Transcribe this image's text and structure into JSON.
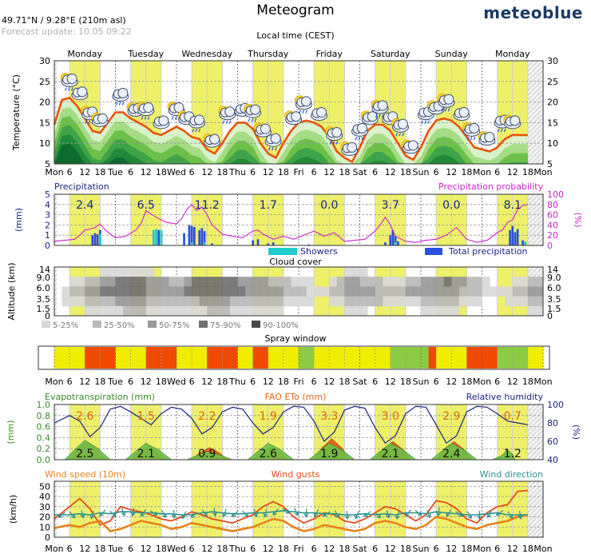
{
  "header": {
    "location": "49.71°N / 9.28°E (210m asl)",
    "forecast_update": "Forecast update: 10.05 09:22",
    "title": "Meteogram",
    "brand": "meteoblue",
    "local_time": "Local time (CEST)"
  },
  "colors": {
    "day_band": "#eef06a",
    "temp_line": "#e8540a",
    "precip_bar": "#2b50e0",
    "showers_bar": "#22cccc",
    "precip_prob": "#cc22cc",
    "humidity": "#1a237e",
    "evapo": "#6cc04a",
    "fao": "#e0651a",
    "wind_speed": "#e8821a",
    "wind_gusts": "#e84a1a",
    "wind_dir": "#2a9090"
  },
  "days": [
    "Monday",
    "Tuesday",
    "Wednesday",
    "Thursday",
    "Friday",
    "Saturday",
    "Sunday",
    "Monday"
  ],
  "axis_ticks": [
    "Mon",
    "6",
    "12",
    "18",
    "Tue",
    "6",
    "12",
    "18",
    "Wed",
    "6",
    "12",
    "18",
    "Thu",
    "6",
    "12",
    "18",
    "Fri",
    "6",
    "12",
    "18",
    "Sat",
    "6",
    "12",
    "18",
    "Sun",
    "6",
    "12",
    "18",
    "Mon",
    "6",
    "12",
    "18",
    "Mon"
  ],
  "chart_data": [
    {
      "type": "area",
      "id": "temperature",
      "ylabel": "Temperature (°C)",
      "ylim": [
        5,
        30
      ],
      "yticks": [
        5,
        10,
        15,
        20,
        25,
        30
      ],
      "x_unit": "hours since Monday 00:00",
      "series": [
        {
          "x": [
            0,
            3,
            6,
            9,
            12,
            15,
            18,
            21,
            24,
            27,
            30,
            33,
            36,
            39,
            42,
            45,
            48,
            51,
            54,
            57,
            60,
            63,
            66,
            69,
            72,
            75,
            78,
            81,
            84,
            87,
            90,
            93,
            96,
            99,
            102,
            105,
            108,
            111,
            114,
            117,
            120,
            123,
            126,
            129,
            132,
            135,
            138,
            141,
            144,
            147,
            150,
            153,
            156,
            159,
            162,
            165,
            168,
            171,
            174,
            177,
            180,
            183,
            186
          ],
          "values": [
            14.5,
            20.5,
            21,
            19,
            16,
            13,
            12.5,
            15,
            17.5,
            17.5,
            16,
            15,
            14,
            12.5,
            12,
            13,
            14,
            13,
            11.5,
            11,
            8.5,
            7.5,
            10,
            13,
            15,
            15,
            13.5,
            10,
            7.5,
            6.5,
            10,
            13,
            15,
            15.5,
            15,
            14,
            11.5,
            8,
            6.5,
            5.5,
            9,
            13,
            14.5,
            14.5,
            13,
            10,
            7,
            6,
            9,
            13,
            15.5,
            16,
            15.5,
            14,
            11.5,
            9,
            8.5,
            8,
            9,
            11,
            12,
            12,
            12
          ]
        }
      ]
    },
    {
      "type": "bar",
      "id": "precipitation",
      "title": "Precipitation",
      "ylabel": "(mm)",
      "ylim": [
        0,
        5
      ],
      "yticks": [
        0,
        1,
        2,
        3,
        4,
        5
      ],
      "y2label": "(%)",
      "y2lim": [
        0,
        100
      ],
      "y2ticks": [
        0,
        20,
        40,
        60,
        80,
        100
      ],
      "y2title": "Precipitation probability",
      "daily_totals": [
        "2.4",
        "6.5",
        "11.2",
        "1.7",
        "0.0",
        "3.7",
        "0.0",
        "8.1"
      ],
      "legend": [
        "Showers",
        "Total precipitation"
      ],
      "total_bars": [
        [
          15,
          1.0
        ],
        [
          16,
          1.2
        ],
        [
          17,
          1.1
        ],
        [
          18,
          1.5
        ],
        [
          41,
          1.5
        ],
        [
          42,
          1.4
        ],
        [
          51,
          1.2
        ],
        [
          53,
          2.0
        ],
        [
          54,
          1.9
        ],
        [
          55,
          1.8
        ],
        [
          57,
          1.5
        ],
        [
          58,
          1.7
        ],
        [
          59,
          1.4
        ],
        [
          62,
          0.2
        ],
        [
          78,
          0.5
        ],
        [
          80,
          0.6
        ],
        [
          84,
          0.2
        ],
        [
          86,
          0.3
        ],
        [
          100,
          0.1
        ],
        [
          130,
          0.3
        ],
        [
          132,
          1.0
        ],
        [
          133,
          1.5
        ],
        [
          134,
          0.9
        ],
        [
          135,
          0.4
        ],
        [
          179,
          1.5
        ],
        [
          180,
          1.9
        ],
        [
          181,
          1.3
        ],
        [
          182,
          1.6
        ],
        [
          184,
          0.5
        ],
        [
          185,
          0.3
        ]
      ],
      "shower_bars": [
        [
          18,
          1.1
        ],
        [
          39,
          1.5
        ],
        [
          40,
          1.6
        ],
        [
          42,
          1.5
        ],
        [
          54,
          0.3
        ],
        [
          59,
          0.3
        ],
        [
          134,
          0.3
        ],
        [
          185,
          0.4
        ]
      ],
      "probability": {
        "x": [
          0,
          4,
          8,
          10,
          12,
          14,
          16,
          18,
          20,
          24,
          28,
          32,
          34,
          36,
          40,
          44,
          48,
          50,
          52,
          54,
          56,
          58,
          60,
          62,
          66,
          70,
          74,
          78,
          80,
          82,
          86,
          90,
          94,
          98,
          102,
          106,
          110,
          114,
          118,
          122,
          126,
          128,
          130,
          132,
          134,
          138,
          142,
          146,
          150,
          154,
          158,
          162,
          166,
          170,
          174,
          176,
          178,
          180,
          182,
          184,
          186
        ],
        "values": [
          8,
          10,
          12,
          20,
          30,
          32,
          35,
          42,
          30,
          15,
          18,
          30,
          42,
          68,
          55,
          45,
          42,
          52,
          70,
          80,
          68,
          75,
          60,
          40,
          22,
          18,
          15,
          28,
          30,
          22,
          12,
          18,
          12,
          20,
          28,
          18,
          25,
          8,
          10,
          12,
          28,
          40,
          55,
          40,
          18,
          8,
          6,
          10,
          12,
          20,
          35,
          12,
          6,
          10,
          25,
          30,
          45,
          50,
          70,
          78,
          80
        ]
      }
    },
    {
      "type": "heatmap",
      "id": "cloud_cover",
      "title": "Cloud cover",
      "ylabel": "Altitude (km)",
      "yticks": [
        "0",
        "1.5",
        "3.5",
        "6.0",
        "9.0",
        "14"
      ],
      "legend": [
        "5-25%",
        "25-50%",
        "50-75%",
        "75-90%",
        "90-100%"
      ],
      "level_colors": [
        "#d8d8d8",
        "#b8b8b8",
        "#989898",
        "#707070",
        "#4a4a4a"
      ],
      "x_step_hours": 3,
      "rows_top_to_bottom": [
        "0000001111111000000000000000000000000011100000000000000000000000",
        "0011223344443332234444443333222111001233222111223334332210001122",
        "0122334444443333344444444333332221112233332222333333322211112233",
        "0111222233332222222333322222221111001122222111112222211100011122",
        "0000111112221111111122211111110000000011100000001111100000000011"
      ]
    },
    {
      "type": "table",
      "id": "spray_window",
      "title": "Spray window",
      "level_colors": [
        "#e6e633",
        "#f0ed00",
        "#f04a00",
        "#8ccc44"
      ],
      "cells": "1111222211112222111122221122111133111111111133333211112222333311"
    },
    {
      "type": "area",
      "id": "evapotranspiration",
      "title": "Evapotranspiration (mm)",
      "ylabel": "(mm)",
      "ylim": [
        0,
        1
      ],
      "yticks": [
        "0.0",
        "0.2",
        "0.4",
        "0.6",
        "0.8",
        "1.0"
      ],
      "fao_title": "FAO ETo (mm)",
      "y2label": "(%)",
      "y2title": "Relative humidity",
      "y2lim": [
        40,
        100
      ],
      "y2ticks": [
        40,
        60,
        80,
        100
      ],
      "fao_daily": [
        "2.6",
        "1.5",
        "2.2",
        "1.9",
        "3.3",
        "3.0",
        "2.9",
        "0.7"
      ],
      "evapo_daily": [
        "2.5",
        "2.1",
        "0.9",
        "2.6",
        "1.9",
        "2.1",
        "2.4",
        "1.2"
      ],
      "humidity": {
        "x": [
          0,
          6,
          10,
          14,
          18,
          22,
          26,
          30,
          34,
          38,
          42,
          46,
          50,
          54,
          58,
          62,
          66,
          70,
          74,
          78,
          82,
          86,
          90,
          94,
          98,
          102,
          106,
          110,
          114,
          118,
          122,
          126,
          130,
          134,
          138,
          142,
          146,
          150,
          154,
          158,
          162,
          166,
          170,
          174,
          178,
          182,
          186
        ],
        "values": [
          80,
          88,
          82,
          65,
          75,
          95,
          98,
          92,
          85,
          78,
          90,
          97,
          95,
          85,
          68,
          75,
          92,
          97,
          95,
          80,
          68,
          75,
          92,
          98,
          97,
          82,
          60,
          70,
          94,
          98,
          96,
          75,
          58,
          66,
          90,
          98,
          97,
          78,
          58,
          66,
          92,
          98,
          97,
          90,
          82,
          80,
          78
        ]
      }
    },
    {
      "type": "line",
      "id": "wind",
      "title": "Wind speed (10m)",
      "gusts_title": "Wind gusts",
      "direction_title": "Wind direction",
      "ylabel": "(km/h)",
      "ylim": [
        0,
        55
      ],
      "yticks": [
        0,
        10,
        20,
        30,
        40,
        50
      ],
      "speed": {
        "x": [
          0,
          6,
          10,
          14,
          18,
          22,
          26,
          30,
          34,
          38,
          42,
          46,
          50,
          54,
          58,
          62,
          66,
          70,
          74,
          78,
          82,
          86,
          90,
          94,
          98,
          102,
          106,
          110,
          114,
          118,
          122,
          126,
          130,
          134,
          138,
          142,
          146,
          150,
          154,
          158,
          162,
          166,
          170,
          174,
          178,
          182,
          186
        ],
        "values": [
          9,
          12,
          10,
          14,
          16,
          6,
          8,
          12,
          16,
          14,
          12,
          8,
          10,
          14,
          12,
          10,
          8,
          6,
          8,
          10,
          14,
          18,
          16,
          10,
          6,
          8,
          12,
          10,
          8,
          6,
          8,
          14,
          16,
          14,
          10,
          8,
          12,
          20,
          18,
          14,
          10,
          8,
          12,
          14,
          16,
          20,
          22
        ]
      },
      "gusts": {
        "x": [
          0,
          6,
          10,
          14,
          18,
          22,
          26,
          30,
          34,
          38,
          42,
          46,
          50,
          54,
          58,
          62,
          66,
          70,
          74,
          78,
          82,
          86,
          90,
          94,
          98,
          102,
          106,
          110,
          114,
          118,
          122,
          126,
          130,
          134,
          138,
          142,
          146,
          150,
          154,
          158,
          162,
          166,
          170,
          174,
          178,
          182,
          186
        ],
        "values": [
          18,
          30,
          38,
          28,
          12,
          16,
          30,
          27,
          25,
          22,
          18,
          16,
          20,
          25,
          22,
          18,
          16,
          14,
          18,
          22,
          30,
          35,
          30,
          20,
          14,
          18,
          24,
          22,
          16,
          14,
          18,
          24,
          30,
          28,
          22,
          16,
          22,
          36,
          34,
          28,
          18,
          14,
          24,
          30,
          32,
          45,
          46
        ]
      },
      "direction": {
        "x": [
          0,
          6,
          10,
          14,
          18,
          22,
          26,
          30,
          34,
          38,
          42,
          46,
          50,
          54,
          58,
          62,
          66,
          70,
          74,
          78,
          82,
          86,
          90,
          94,
          98,
          102,
          106,
          110,
          114,
          118,
          122,
          126,
          130,
          134,
          138,
          142,
          146,
          150,
          154,
          158,
          162,
          166,
          170,
          174,
          178,
          182,
          186
        ],
        "values": [
          22,
          22,
          23,
          22,
          24,
          23,
          25,
          25,
          24,
          24,
          23,
          23,
          22,
          22,
          24,
          25,
          24,
          23,
          23,
          24,
          24,
          25,
          26,
          25,
          24,
          24,
          23,
          23,
          22,
          22,
          23,
          22,
          23,
          22,
          24,
          24,
          23,
          25,
          24,
          23,
          22,
          22,
          23,
          24,
          22,
          22,
          22
        ]
      }
    }
  ]
}
